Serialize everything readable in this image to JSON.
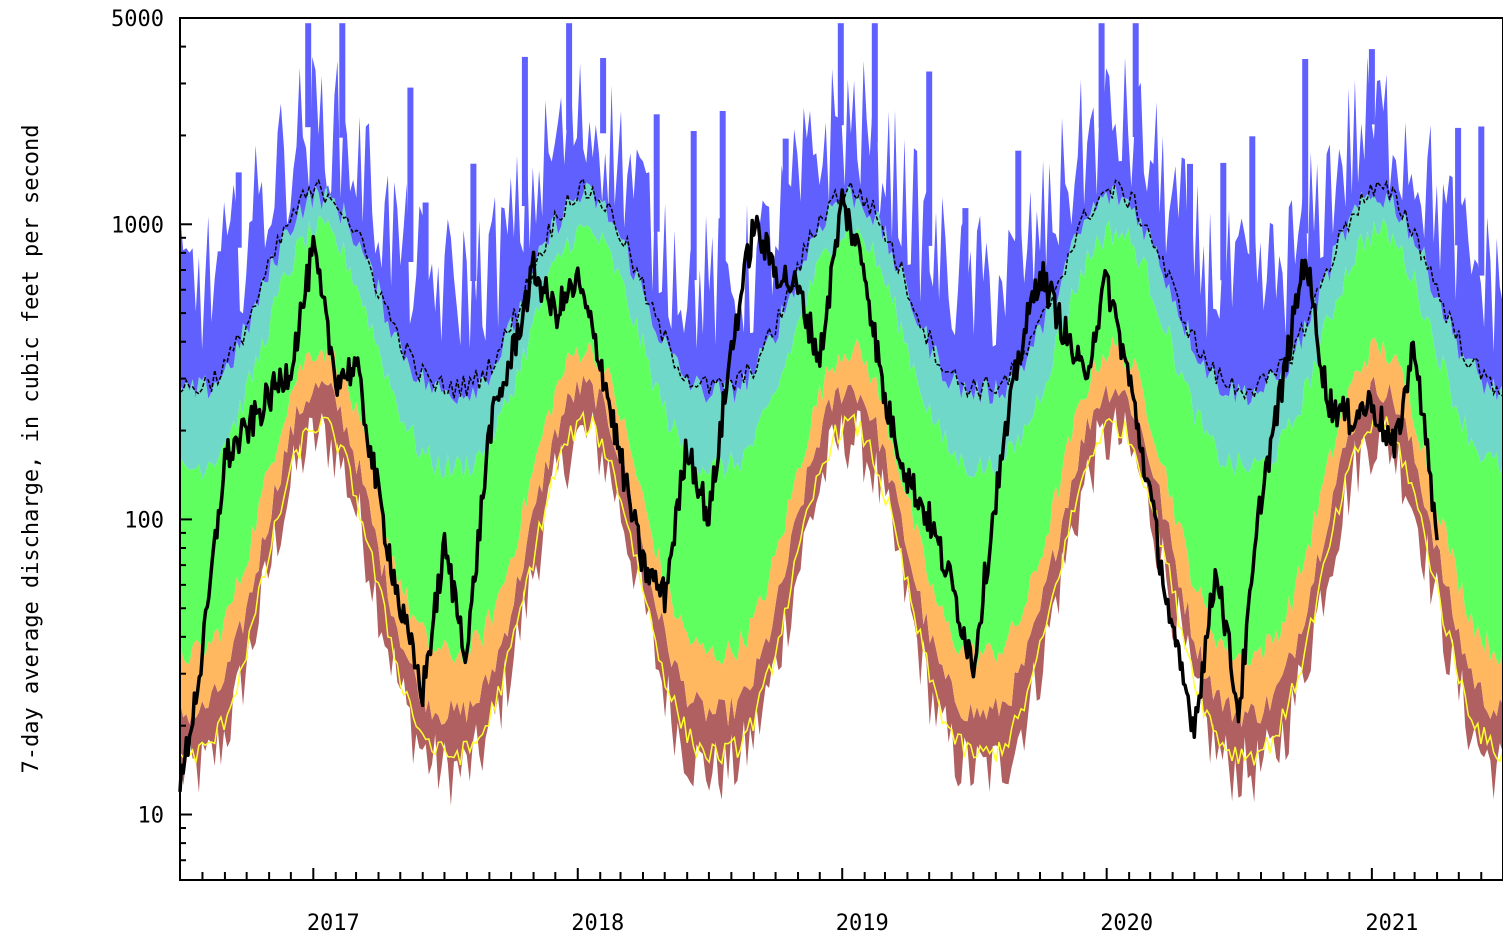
{
  "chart_data": {
    "type": "area",
    "ylabel": "7-day average discharge, in cubic feet per second",
    "yscale": "log",
    "ylim": [
      6,
      5000
    ],
    "yticks": [
      {
        "value": 10,
        "label": "10"
      },
      {
        "value": 100,
        "label": "100"
      },
      {
        "value": 1000,
        "label": "1000"
      },
      {
        "value": 5000,
        "label": "5000"
      }
    ],
    "xlim": [
      "2016-07-01",
      "2021-07-01"
    ],
    "xticks": [
      {
        "date": "2017-01-01",
        "label": "2017"
      },
      {
        "date": "2018-01-01",
        "label": "2018"
      },
      {
        "date": "2019-01-01",
        "label": "2019"
      },
      {
        "date": "2020-01-01",
        "label": "2020"
      },
      {
        "date": "2021-01-01",
        "label": "2021"
      }
    ],
    "bands": [
      {
        "color": "#b06060",
        "envelope": "min-p10"
      },
      {
        "color": "#ffb860",
        "envelope": "p10-p25"
      },
      {
        "color": "#60ff60",
        "envelope": "p25-p75"
      },
      {
        "color": "#70d8c8",
        "envelope": "p75-p90"
      },
      {
        "color": "#6060ff",
        "envelope": "p90-max"
      }
    ],
    "seasonal": {
      "min": {
        "winter": 190,
        "summer": 14
      },
      "p10": {
        "winter": 280,
        "summer": 22
      },
      "p25": {
        "winter": 380,
        "summer": 35
      },
      "p75": {
        "winter": 950,
        "summer": 150
      },
      "p90": {
        "winter": 1250,
        "summer": 270
      },
      "max": {
        "winter": 2200,
        "summer": 620
      },
      "median_dashed": {
        "winter": 1300,
        "summer": 280
      },
      "yellow_line": {
        "winter": 210,
        "summer": 16
      }
    },
    "observed_series": {
      "color": "#000000",
      "points": [
        [
          "2016-07-01",
          12
        ],
        [
          "2016-08-01",
          35
        ],
        [
          "2016-09-01",
          160
        ],
        [
          "2016-10-01",
          200
        ],
        [
          "2016-11-01",
          260
        ],
        [
          "2016-12-01",
          330
        ],
        [
          "2017-01-01",
          820
        ],
        [
          "2017-02-01",
          300
        ],
        [
          "2017-03-01",
          330
        ],
        [
          "2017-04-01",
          120
        ],
        [
          "2017-05-01",
          50
        ],
        [
          "2017-06-01",
          26
        ],
        [
          "2017-07-01",
          80
        ],
        [
          "2017-08-01",
          35
        ],
        [
          "2017-09-01",
          200
        ],
        [
          "2017-10-01",
          350
        ],
        [
          "2017-11-01",
          700
        ],
        [
          "2017-12-01",
          500
        ],
        [
          "2018-01-01",
          640
        ],
        [
          "2018-02-01",
          350
        ],
        [
          "2018-03-01",
          160
        ],
        [
          "2018-04-01",
          70
        ],
        [
          "2018-05-01",
          55
        ],
        [
          "2018-06-01",
          180
        ],
        [
          "2018-07-01",
          100
        ],
        [
          "2018-08-01",
          380
        ],
        [
          "2018-09-01",
          1000
        ],
        [
          "2018-10-01",
          700
        ],
        [
          "2018-11-01",
          600
        ],
        [
          "2018-12-01",
          350
        ],
        [
          "2019-01-01",
          1200
        ],
        [
          "2019-02-01",
          700
        ],
        [
          "2019-03-01",
          250
        ],
        [
          "2019-04-01",
          140
        ],
        [
          "2019-05-01",
          100
        ],
        [
          "2019-06-01",
          60
        ],
        [
          "2019-07-01",
          32
        ],
        [
          "2019-08-01",
          120
        ],
        [
          "2019-09-01",
          350
        ],
        [
          "2019-10-01",
          700
        ],
        [
          "2019-11-01",
          450
        ],
        [
          "2019-12-01",
          300
        ],
        [
          "2020-01-01",
          650
        ],
        [
          "2020-02-01",
          300
        ],
        [
          "2020-03-01",
          120
        ],
        [
          "2020-04-01",
          40
        ],
        [
          "2020-05-01",
          20
        ],
        [
          "2020-06-01",
          70
        ],
        [
          "2020-07-01",
          22
        ],
        [
          "2020-08-01",
          120
        ],
        [
          "2020-09-01",
          300
        ],
        [
          "2020-10-01",
          800
        ],
        [
          "2020-11-01",
          250
        ],
        [
          "2020-12-01",
          220
        ],
        [
          "2021-01-01",
          250
        ],
        [
          "2021-02-01",
          170
        ],
        [
          "2021-03-01",
          400
        ],
        [
          "2021-04-01",
          85
        ]
      ]
    }
  }
}
